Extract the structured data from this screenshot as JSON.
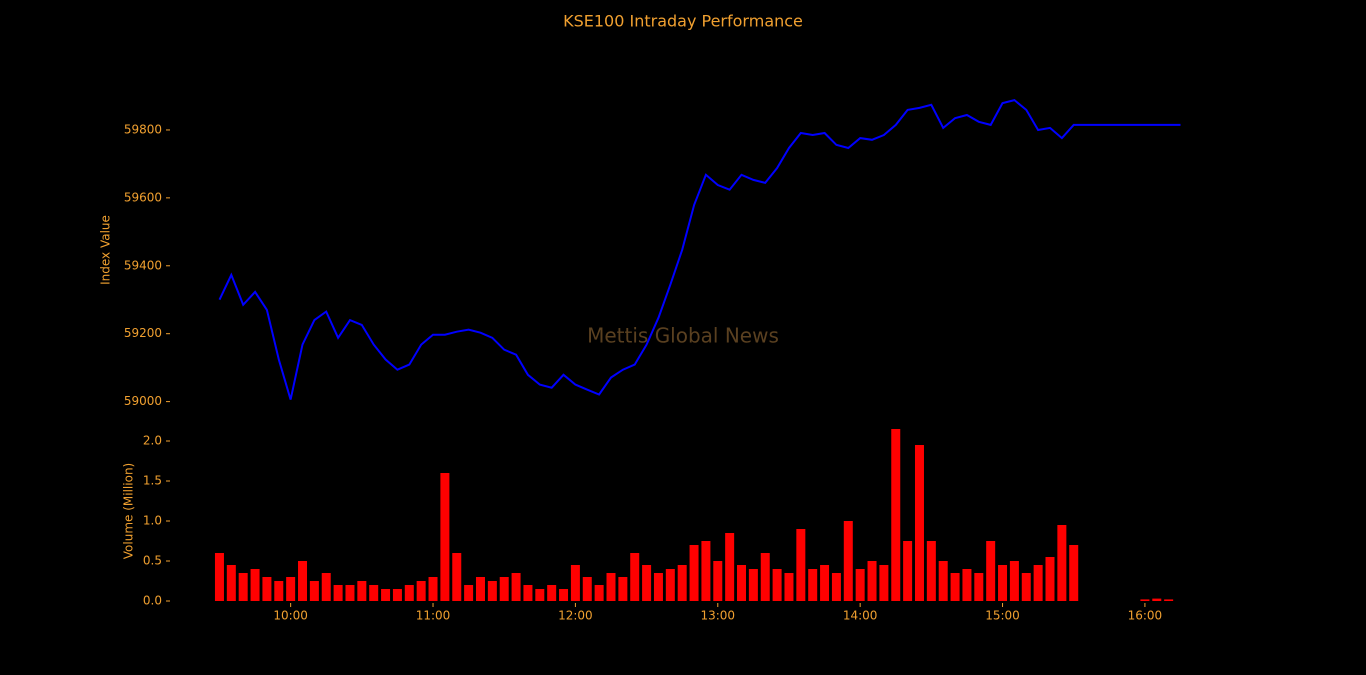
{
  "chart_data": [
    {
      "type": "line",
      "title": "KSE100 Intraday Performance",
      "ylabel": "Index Value",
      "annotation": "Mettis Global News",
      "x": [
        "09:30",
        "09:35",
        "09:40",
        "09:45",
        "09:50",
        "09:55",
        "10:00",
        "10:05",
        "10:10",
        "10:15",
        "10:20",
        "10:25",
        "10:30",
        "10:35",
        "10:40",
        "10:45",
        "10:50",
        "10:55",
        "11:00",
        "11:05",
        "11:10",
        "11:15",
        "11:20",
        "11:25",
        "11:30",
        "11:35",
        "11:40",
        "11:45",
        "11:50",
        "11:55",
        "12:00",
        "12:05",
        "12:10",
        "12:15",
        "12:20",
        "12:25",
        "12:30",
        "12:35",
        "12:40",
        "12:45",
        "12:50",
        "12:55",
        "13:00",
        "13:05",
        "13:10",
        "13:15",
        "13:20",
        "13:25",
        "13:30",
        "13:35",
        "13:40",
        "13:45",
        "13:50",
        "13:55",
        "14:00",
        "14:05",
        "14:10",
        "14:15",
        "14:20",
        "14:25",
        "14:30",
        "14:35",
        "14:40",
        "14:45",
        "14:50",
        "14:55",
        "15:00",
        "15:05",
        "15:10",
        "15:15",
        "15:20",
        "15:25",
        "15:30",
        "16:15"
      ],
      "series": [
        {
          "name": "KSE100",
          "color": "#0000ff",
          "values": [
            59300,
            59373,
            59285,
            59323,
            59270,
            59124,
            59006,
            59168,
            59240,
            59265,
            59188,
            59240,
            59226,
            59168,
            59124,
            59094,
            59109,
            59168,
            59197,
            59197,
            59206,
            59212,
            59203,
            59188,
            59153,
            59138,
            59079,
            59050,
            59041,
            59079,
            59050,
            59035,
            59021,
            59071,
            59094,
            59109,
            59168,
            59247,
            59344,
            59447,
            59579,
            59668,
            59638,
            59624,
            59668,
            59653,
            59644,
            59688,
            59747,
            59791,
            59785,
            59791,
            59756,
            59747,
            59776,
            59771,
            59785,
            59815,
            59859,
            59865,
            59874,
            59806,
            59835,
            59844,
            59824,
            59815,
            59879,
            59888,
            59859,
            59800,
            59806,
            59776,
            59815,
            59815
          ]
        }
      ],
      "xlim": [
        "09:10",
        "16:19"
      ],
      "ylim": [
        58990,
        59900
      ],
      "yticks": [
        59000,
        59200,
        59400,
        59600,
        59800
      ]
    },
    {
      "type": "bar",
      "ylabel": "Volume (Million)",
      "x": [
        "09:30",
        "09:35",
        "09:40",
        "09:45",
        "09:50",
        "09:55",
        "10:00",
        "10:05",
        "10:10",
        "10:15",
        "10:20",
        "10:25",
        "10:30",
        "10:35",
        "10:40",
        "10:45",
        "10:50",
        "10:55",
        "11:00",
        "11:05",
        "11:10",
        "11:15",
        "11:20",
        "11:25",
        "11:30",
        "11:35",
        "11:40",
        "11:45",
        "11:50",
        "11:55",
        "12:00",
        "12:05",
        "12:10",
        "12:15",
        "12:20",
        "12:25",
        "12:30",
        "12:35",
        "12:40",
        "12:45",
        "12:50",
        "12:55",
        "13:00",
        "13:05",
        "13:10",
        "13:15",
        "13:20",
        "13:25",
        "13:30",
        "13:35",
        "13:40",
        "13:45",
        "13:50",
        "13:55",
        "14:00",
        "14:05",
        "14:10",
        "14:15",
        "14:20",
        "14:25",
        "14:30",
        "14:35",
        "14:40",
        "14:45",
        "14:50",
        "14:55",
        "15:00",
        "15:05",
        "15:10",
        "15:15",
        "15:20",
        "15:25",
        "15:30",
        "16:00",
        "16:05",
        "16:10"
      ],
      "series": [
        {
          "name": "Volume",
          "color": "#ff0000",
          "values": [
            0.6,
            0.45,
            0.35,
            0.4,
            0.3,
            0.25,
            0.3,
            0.5,
            0.25,
            0.35,
            0.2,
            0.2,
            0.25,
            0.2,
            0.15,
            0.15,
            0.2,
            0.25,
            0.3,
            1.6,
            0.6,
            0.2,
            0.3,
            0.25,
            0.3,
            0.35,
            0.2,
            0.15,
            0.2,
            0.15,
            0.45,
            0.3,
            0.2,
            0.35,
            0.3,
            0.6,
            0.45,
            0.35,
            0.4,
            0.45,
            0.7,
            0.75,
            0.5,
            0.85,
            0.45,
            0.4,
            0.6,
            0.4,
            0.35,
            0.9,
            0.4,
            0.45,
            0.35,
            1.0,
            0.4,
            0.5,
            0.45,
            2.15,
            0.75,
            1.95,
            0.75,
            0.5,
            0.35,
            0.4,
            0.35,
            0.75,
            0.45,
            0.5,
            0.35,
            0.45,
            0.55,
            0.95,
            0.7,
            0.02,
            0.03,
            0.02
          ]
        }
      ],
      "xlim": [
        "09:10",
        "16:19"
      ],
      "ylim": [
        0,
        2.2
      ],
      "yticks": [
        {
          "value": 0,
          "label": "0.0"
        },
        0.5,
        {
          "value": 1,
          "label": "1.0"
        },
        1.5,
        {
          "value": 2,
          "label": "2.0"
        }
      ],
      "xticks": [
        "10:00",
        "11:00",
        "12:00",
        "13:00",
        "14:00",
        "15:00",
        "16:00"
      ]
    }
  ]
}
